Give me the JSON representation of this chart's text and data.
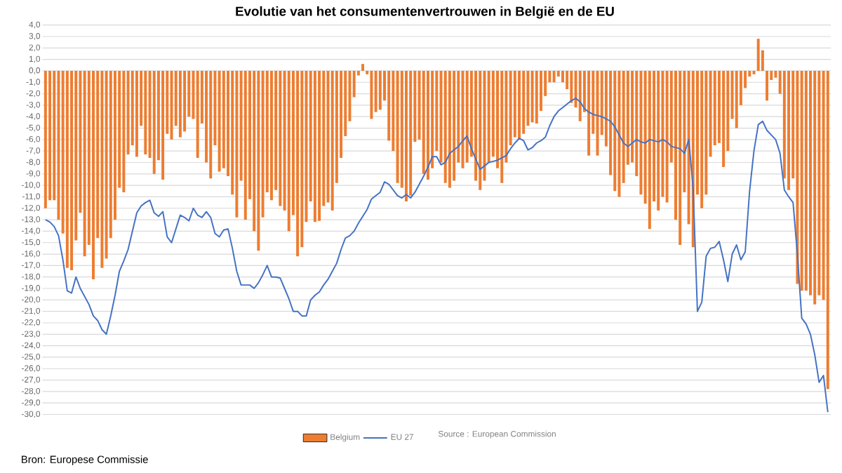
{
  "chart_data": {
    "type": "bar",
    "title": "Evolutie van het consumentenvertrouwen in België en de EU",
    "categories": [
      null,
      null,
      null,
      null,
      null,
      null,
      null,
      null,
      null,
      null,
      null,
      null,
      null,
      null,
      null,
      null,
      null,
      null,
      null,
      null,
      null,
      null,
      null,
      null,
      null,
      null,
      null,
      null,
      null,
      null,
      null,
      null,
      null,
      null,
      null,
      null,
      null,
      null,
      null,
      null,
      null,
      null,
      null,
      null,
      null,
      null,
      null,
      null,
      null,
      null,
      null,
      null,
      null,
      null,
      null,
      null,
      null,
      null,
      null,
      null,
      null,
      null,
      null,
      null,
      null,
      null,
      null,
      null,
      null,
      null,
      null,
      null,
      null,
      null,
      null,
      null,
      null,
      null,
      null,
      null,
      null,
      null,
      null,
      null,
      null,
      null,
      null,
      null,
      null,
      null,
      null,
      null,
      null,
      null,
      null,
      null,
      null,
      null,
      null,
      null,
      null,
      null,
      null,
      null,
      null,
      null,
      null,
      null,
      null,
      null,
      null,
      null,
      null,
      null,
      null,
      null,
      null,
      null,
      null,
      null,
      null,
      null,
      null,
      null,
      null,
      null,
      null,
      null,
      null,
      null,
      null,
      null,
      null,
      null,
      null,
      null,
      null,
      null,
      null,
      null,
      null,
      null,
      null,
      null,
      null,
      null,
      null,
      null,
      null,
      null,
      null,
      null,
      null,
      null,
      null,
      null,
      null,
      null,
      null,
      null,
      null,
      null,
      null,
      null,
      null,
      null,
      null,
      null,
      null,
      null,
      null,
      null,
      null,
      null,
      null,
      null,
      null,
      null,
      null,
      null,
      null
    ],
    "series": [
      {
        "name": "Belgium",
        "color": "#ed7d31",
        "values": [
          -12.0,
          -11.3,
          -11.3,
          -13.0,
          -14.2,
          -17.2,
          -17.4,
          -14.8,
          -12.4,
          -16.2,
          -15.2,
          -18.2,
          -14.6,
          -17.2,
          -16.4,
          -14.6,
          -13.0,
          -10.2,
          -10.6,
          -7.3,
          -6.5,
          -7.5,
          -4.8,
          -7.3,
          -7.6,
          -9.0,
          -7.8,
          -9.5,
          -5.5,
          -6.0,
          -4.8,
          -5.8,
          -5.3,
          -4.0,
          -4.2,
          -7.6,
          -4.6,
          -8.0,
          -9.4,
          -6.5,
          -8.8,
          -8.5,
          -9.2,
          -10.8,
          -12.8,
          -9.6,
          -13.0,
          -11.2,
          -14.0,
          -15.7,
          -12.8,
          -10.6,
          -11.3,
          -10.4,
          -11.8,
          -12.2,
          -14.0,
          -12.6,
          -16.2,
          -15.4,
          -13.2,
          -11.4,
          -13.2,
          -13.1,
          -11.8,
          -11.5,
          -12.2,
          -9.8,
          -7.6,
          -5.7,
          -4.4,
          -2.3,
          -0.4,
          0.6,
          -0.3,
          -4.2,
          -3.6,
          -3.4,
          -2.6,
          -6.1,
          -7.0,
          -9.8,
          -10.2,
          -11.4,
          -10.9,
          -6.2,
          -6.0,
          -9.0,
          -9.5,
          -8.5,
          -7.0,
          -8.0,
          -9.8,
          -10.2,
          -9.6,
          -8.0,
          -8.5,
          -8.0,
          -7.5,
          -9.6,
          -10.4,
          -9.6,
          -8.0,
          -7.5,
          -8.5,
          -9.8,
          -8.0,
          -6.5,
          -5.8,
          -6.0,
          -5.5,
          -4.8,
          -4.5,
          -4.6,
          -3.5,
          -2.2,
          -1.0,
          -1.0,
          -0.5,
          -1.0,
          -1.6,
          -2.8,
          -3.2,
          -4.4,
          -3.6,
          -7.4,
          -5.5,
          -7.4,
          -5.6,
          -6.6,
          -9.1,
          -10.5,
          -11.0,
          -9.8,
          -8.2,
          -8.0,
          -9.2,
          -10.8,
          -11.6,
          -13.8,
          -11.4,
          -12.2,
          -11.0,
          -11.5,
          -8.0,
          -13.0,
          -15.2,
          -10.6,
          -13.4,
          -15.4,
          -10.8,
          -12.0,
          -10.8,
          -7.5,
          -6.5,
          -6.3,
          -8.4,
          -7.0,
          -4.2,
          -5.0,
          -3.0,
          -1.5,
          -0.5,
          -0.3,
          2.8,
          1.8,
          -2.6,
          -0.8,
          -0.6,
          -2.0,
          -9.4,
          -10.4,
          -9.4,
          -18.6,
          -19.2,
          -19.2,
          -19.6,
          -20.4,
          -19.6,
          -20.0,
          -27.8
        ]
      },
      {
        "name": "EU 27",
        "type": "line",
        "color": "#4472c4",
        "values": [
          -13.0,
          -13.2,
          -13.6,
          -14.4,
          -16.5,
          -19.2,
          -19.4,
          -18.0,
          -19.0,
          -19.7,
          -20.4,
          -21.4,
          -21.8,
          -22.6,
          -23.0,
          -21.4,
          -19.6,
          -17.5,
          -16.6,
          -15.6,
          -14.0,
          -12.4,
          -11.8,
          -11.5,
          -11.3,
          -12.4,
          -12.7,
          -12.3,
          -14.5,
          -15.0,
          -13.8,
          -12.6,
          -12.8,
          -13.1,
          -12.0,
          -12.6,
          -12.8,
          -12.3,
          -12.8,
          -14.2,
          -14.5,
          -13.9,
          -13.8,
          -15.5,
          -17.5,
          -18.7,
          -18.7,
          -18.7,
          -19.0,
          -18.5,
          -17.8,
          -17.0,
          -18.0,
          -18.0,
          -18.1,
          -19.0,
          -19.9,
          -21.0,
          -21.0,
          -21.4,
          -21.4,
          -20.0,
          -19.6,
          -19.3,
          -18.7,
          -18.2,
          -17.5,
          -16.8,
          -15.6,
          -14.6,
          -14.4,
          -14.0,
          -13.3,
          -12.7,
          -12.1,
          -11.2,
          -10.9,
          -10.6,
          -9.7,
          -9.9,
          -10.4,
          -10.9,
          -11.1,
          -10.8,
          -11.1,
          -10.6,
          -9.9,
          -9.2,
          -8.4,
          -7.5,
          -7.5,
          -8.2,
          -8.0,
          -7.2,
          -6.9,
          -6.6,
          -6.1,
          -5.7,
          -6.8,
          -7.7,
          -8.6,
          -8.3,
          -8.0,
          -7.9,
          -7.8,
          -7.6,
          -7.4,
          -6.8,
          -6.3,
          -5.9,
          -6.1,
          -6.9,
          -6.7,
          -6.3,
          -6.1,
          -5.8,
          -4.8,
          -4.0,
          -3.5,
          -3.2,
          -2.9,
          -2.6,
          -2.4,
          -2.7,
          -3.3,
          -3.6,
          -3.8,
          -3.9,
          -4.0,
          -4.2,
          -4.4,
          -4.9,
          -5.6,
          -6.3,
          -6.6,
          -6.3,
          -6.0,
          -6.2,
          -6.3,
          -6.0,
          -6.1,
          -6.2,
          -6.0,
          -6.2,
          -6.6,
          -6.7,
          -6.8,
          -7.2,
          -6.0,
          -10.2,
          -21.0,
          -20.2,
          -16.2,
          -15.5,
          -15.4,
          -14.9,
          -16.5,
          -18.4,
          -16.0,
          -15.2,
          -16.5,
          -15.8,
          -10.5,
          -7.0,
          -4.7,
          -4.4,
          -5.2,
          -5.6,
          -6.0,
          -7.2,
          -10.4,
          -11.0,
          -11.5,
          -16.0,
          -21.6,
          -22.1,
          -23.0,
          -24.8,
          -27.2,
          -26.6,
          -29.8
        ]
      }
    ],
    "ylim": [
      -30,
      4
    ],
    "yticks": [
      {
        "value": 4,
        "label": "4,0"
      },
      {
        "value": 3,
        "label": "3,0"
      },
      {
        "value": 2,
        "label": "2,0"
      },
      {
        "value": 1,
        "label": "1,0"
      },
      {
        "value": 0,
        "label": "0,0"
      },
      {
        "value": -1,
        "label": "-1,0"
      },
      {
        "value": -2,
        "label": "-2,0"
      },
      {
        "value": -3,
        "label": "-3,0"
      },
      {
        "value": -4,
        "label": "-4,0"
      },
      {
        "value": -5,
        "label": "-5,0"
      },
      {
        "value": -6,
        "label": "-6,0"
      },
      {
        "value": -7,
        "label": "-7,0"
      },
      {
        "value": -8,
        "label": "-8,0"
      },
      {
        "value": -9,
        "label": "-9,0"
      },
      {
        "value": -10,
        "label": "-10,0"
      },
      {
        "value": -11,
        "label": "-11,0"
      },
      {
        "value": -12,
        "label": "-12,0"
      },
      {
        "value": -13,
        "label": "-13,0"
      },
      {
        "value": -14,
        "label": "-14,0"
      },
      {
        "value": -15,
        "label": "-15,0"
      },
      {
        "value": -16,
        "label": "-16,0"
      },
      {
        "value": -17,
        "label": "-17,0"
      },
      {
        "value": -18,
        "label": "-18,0"
      },
      {
        "value": -19,
        "label": "-19,0"
      },
      {
        "value": -20,
        "label": "-20,0"
      },
      {
        "value": -21,
        "label": "-21,0"
      },
      {
        "value": -22,
        "label": "-22,0"
      },
      {
        "value": -23,
        "label": "-23,0"
      },
      {
        "value": -24,
        "label": "-24,0"
      },
      {
        "value": -25,
        "label": "-25,0"
      },
      {
        "value": -26,
        "label": "-26,0"
      },
      {
        "value": -27,
        "label": "-27,0"
      },
      {
        "value": -28,
        "label": "-28,0"
      },
      {
        "value": -29,
        "label": "-29,0"
      },
      {
        "value": -30,
        "label": "-30,0"
      }
    ],
    "grid": "y",
    "legend": "bottom",
    "annotations": [
      "Source : European Commission",
      "Bron: Europese Commissie"
    ]
  }
}
